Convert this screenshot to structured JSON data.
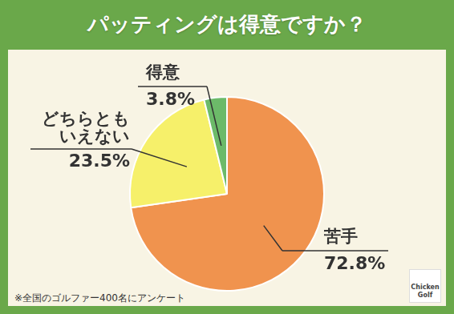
{
  "chart_data": {
    "type": "pie",
    "title": "パッティングは得意ですか？",
    "categories": [
      "苦手",
      "どちらとも\nいえない",
      "得意"
    ],
    "values": [
      72.8,
      23.5,
      3.8
    ],
    "value_labels": [
      "72.8%",
      "23.5%",
      "3.8%"
    ],
    "colors": [
      "#f0934e",
      "#f6f06a",
      "#6cba69"
    ],
    "data_labels": true,
    "note": "※全国のゴルファー400名にアンケート",
    "logo": "Chicken Golf"
  }
}
